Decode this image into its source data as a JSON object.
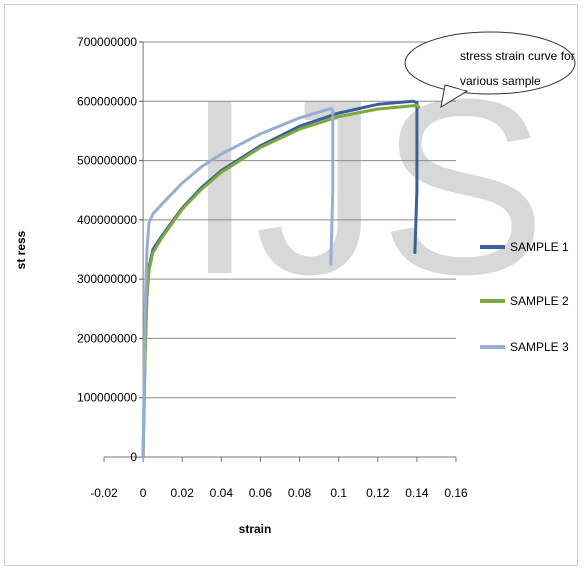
{
  "chart_data": {
    "type": "line",
    "title": "",
    "xlabel": "strain",
    "ylabel": "st ress",
    "xlim": [
      -0.02,
      0.16
    ],
    "ylim": [
      0,
      700000000
    ],
    "x_ticks": [
      "-0.02",
      "0",
      "0.02",
      "0.04",
      "0.06",
      "0.08",
      "0.1",
      "0.12",
      "0.14",
      "0.16"
    ],
    "y_ticks": [
      "0",
      "100000000",
      "200000000",
      "300000000",
      "400000000",
      "500000000",
      "600000000",
      "700000000"
    ],
    "grid": "horizontal",
    "legend_position": "right",
    "series": [
      {
        "name": "SAMPLE 1",
        "color": "#3b5f9a",
        "x": [
          0,
          0.001,
          0.002,
          0.003,
          0.005,
          0.01,
          0.02,
          0.03,
          0.04,
          0.06,
          0.08,
          0.1,
          0.12,
          0.138,
          0.14,
          0.14,
          0.139
        ],
        "y": [
          0,
          180000000,
          280000000,
          320000000,
          350000000,
          375000000,
          420000000,
          455000000,
          483000000,
          525000000,
          558000000,
          580000000,
          595000000,
          600000000,
          598000000,
          450000000,
          345000000
        ]
      },
      {
        "name": "SAMPLE 2",
        "color": "#7ea83b",
        "x": [
          0,
          0.001,
          0.002,
          0.003,
          0.005,
          0.01,
          0.02,
          0.03,
          0.04,
          0.06,
          0.08,
          0.1,
          0.12,
          0.14,
          0.141
        ],
        "y": [
          0,
          170000000,
          270000000,
          315000000,
          345000000,
          372000000,
          418000000,
          452000000,
          480000000,
          522000000,
          553000000,
          574000000,
          587000000,
          593000000,
          590000000
        ]
      },
      {
        "name": "SAMPLE 3",
        "color": "#96aed6",
        "x": [
          0,
          0.001,
          0.002,
          0.003,
          0.005,
          0.01,
          0.02,
          0.03,
          0.04,
          0.06,
          0.08,
          0.096,
          0.097,
          0.097,
          0.096
        ],
        "y": [
          0,
          250000000,
          350000000,
          395000000,
          410000000,
          428000000,
          462000000,
          490000000,
          511000000,
          545000000,
          572000000,
          588000000,
          585000000,
          450000000,
          325000000
        ]
      }
    ],
    "annotation": "stress strain curve for various sample"
  },
  "watermark": "IJS"
}
